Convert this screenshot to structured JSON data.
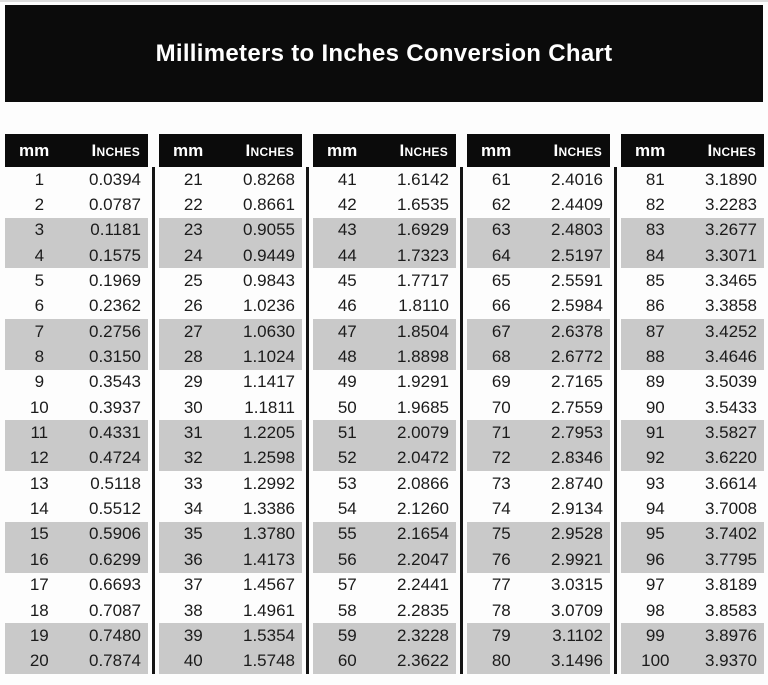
{
  "page": {
    "title": "Millimeters to Inches Conversion Chart"
  },
  "headers": {
    "mm": "mm",
    "in": "Inches"
  },
  "colors": {
    "header_bg": "#0b0b0b",
    "header_text": "#ffffff",
    "shaded_row": "#c9c9c9",
    "text": "#1b1b1b",
    "page_bg": "#fdfdfd"
  },
  "tables": [
    {
      "rows": [
        {
          "mm": "1",
          "in": "0.0394"
        },
        {
          "mm": "2",
          "in": "0.0787"
        },
        {
          "mm": "3",
          "in": "0.1181"
        },
        {
          "mm": "4",
          "in": "0.1575"
        },
        {
          "mm": "5",
          "in": "0.1969"
        },
        {
          "mm": "6",
          "in": "0.2362"
        },
        {
          "mm": "7",
          "in": "0.2756"
        },
        {
          "mm": "8",
          "in": "0.3150"
        },
        {
          "mm": "9",
          "in": "0.3543"
        },
        {
          "mm": "10",
          "in": "0.3937"
        },
        {
          "mm": "11",
          "in": "0.4331"
        },
        {
          "mm": "12",
          "in": "0.4724"
        },
        {
          "mm": "13",
          "in": "0.5118"
        },
        {
          "mm": "14",
          "in": "0.5512"
        },
        {
          "mm": "15",
          "in": "0.5906"
        },
        {
          "mm": "16",
          "in": "0.6299"
        },
        {
          "mm": "17",
          "in": "0.6693"
        },
        {
          "mm": "18",
          "in": "0.7087"
        },
        {
          "mm": "19",
          "in": "0.7480"
        },
        {
          "mm": "20",
          "in": "0.7874"
        }
      ]
    },
    {
      "rows": [
        {
          "mm": "21",
          "in": "0.8268"
        },
        {
          "mm": "22",
          "in": "0.8661"
        },
        {
          "mm": "23",
          "in": "0.9055"
        },
        {
          "mm": "24",
          "in": "0.9449"
        },
        {
          "mm": "25",
          "in": "0.9843"
        },
        {
          "mm": "26",
          "in": "1.0236"
        },
        {
          "mm": "27",
          "in": "1.0630"
        },
        {
          "mm": "28",
          "in": "1.1024"
        },
        {
          "mm": "29",
          "in": "1.1417"
        },
        {
          "mm": "30",
          "in": "1.1811"
        },
        {
          "mm": "31",
          "in": "1.2205"
        },
        {
          "mm": "32",
          "in": "1.2598"
        },
        {
          "mm": "33",
          "in": "1.2992"
        },
        {
          "mm": "34",
          "in": "1.3386"
        },
        {
          "mm": "35",
          "in": "1.3780"
        },
        {
          "mm": "36",
          "in": "1.4173"
        },
        {
          "mm": "37",
          "in": "1.4567"
        },
        {
          "mm": "38",
          "in": "1.4961"
        },
        {
          "mm": "39",
          "in": "1.5354"
        },
        {
          "mm": "40",
          "in": "1.5748"
        }
      ]
    },
    {
      "rows": [
        {
          "mm": "41",
          "in": "1.6142"
        },
        {
          "mm": "42",
          "in": "1.6535"
        },
        {
          "mm": "43",
          "in": "1.6929"
        },
        {
          "mm": "44",
          "in": "1.7323"
        },
        {
          "mm": "45",
          "in": "1.7717"
        },
        {
          "mm": "46",
          "in": "1.8110"
        },
        {
          "mm": "47",
          "in": "1.8504"
        },
        {
          "mm": "48",
          "in": "1.8898"
        },
        {
          "mm": "49",
          "in": "1.9291"
        },
        {
          "mm": "50",
          "in": "1.9685"
        },
        {
          "mm": "51",
          "in": "2.0079"
        },
        {
          "mm": "52",
          "in": "2.0472"
        },
        {
          "mm": "53",
          "in": "2.0866"
        },
        {
          "mm": "54",
          "in": "2.1260"
        },
        {
          "mm": "55",
          "in": "2.1654"
        },
        {
          "mm": "56",
          "in": "2.2047"
        },
        {
          "mm": "57",
          "in": "2.2441"
        },
        {
          "mm": "58",
          "in": "2.2835"
        },
        {
          "mm": "59",
          "in": "2.3228"
        },
        {
          "mm": "60",
          "in": "2.3622"
        }
      ]
    },
    {
      "rows": [
        {
          "mm": "61",
          "in": "2.4016"
        },
        {
          "mm": "62",
          "in": "2.4409"
        },
        {
          "mm": "63",
          "in": "2.4803"
        },
        {
          "mm": "64",
          "in": "2.5197"
        },
        {
          "mm": "65",
          "in": "2.5591"
        },
        {
          "mm": "66",
          "in": "2.5984"
        },
        {
          "mm": "67",
          "in": "2.6378"
        },
        {
          "mm": "68",
          "in": "2.6772"
        },
        {
          "mm": "69",
          "in": "2.7165"
        },
        {
          "mm": "70",
          "in": "2.7559"
        },
        {
          "mm": "71",
          "in": "2.7953"
        },
        {
          "mm": "72",
          "in": "2.8346"
        },
        {
          "mm": "73",
          "in": "2.8740"
        },
        {
          "mm": "74",
          "in": "2.9134"
        },
        {
          "mm": "75",
          "in": "2.9528"
        },
        {
          "mm": "76",
          "in": "2.9921"
        },
        {
          "mm": "77",
          "in": "3.0315"
        },
        {
          "mm": "78",
          "in": "3.0709"
        },
        {
          "mm": "79",
          "in": "3.1102"
        },
        {
          "mm": "80",
          "in": "3.1496"
        }
      ]
    },
    {
      "rows": [
        {
          "mm": "81",
          "in": "3.1890"
        },
        {
          "mm": "82",
          "in": "3.2283"
        },
        {
          "mm": "83",
          "in": "3.2677"
        },
        {
          "mm": "84",
          "in": "3.3071"
        },
        {
          "mm": "85",
          "in": "3.3465"
        },
        {
          "mm": "86",
          "in": "3.3858"
        },
        {
          "mm": "87",
          "in": "3.4252"
        },
        {
          "mm": "88",
          "in": "3.4646"
        },
        {
          "mm": "89",
          "in": "3.5039"
        },
        {
          "mm": "90",
          "in": "3.5433"
        },
        {
          "mm": "91",
          "in": "3.5827"
        },
        {
          "mm": "92",
          "in": "3.6220"
        },
        {
          "mm": "93",
          "in": "3.6614"
        },
        {
          "mm": "94",
          "in": "3.7008"
        },
        {
          "mm": "95",
          "in": "3.7402"
        },
        {
          "mm": "96",
          "in": "3.7795"
        },
        {
          "mm": "97",
          "in": "3.8189"
        },
        {
          "mm": "98",
          "in": "3.8583"
        },
        {
          "mm": "99",
          "in": "3.8976"
        },
        {
          "mm": "100",
          "in": "3.9370"
        }
      ]
    }
  ]
}
